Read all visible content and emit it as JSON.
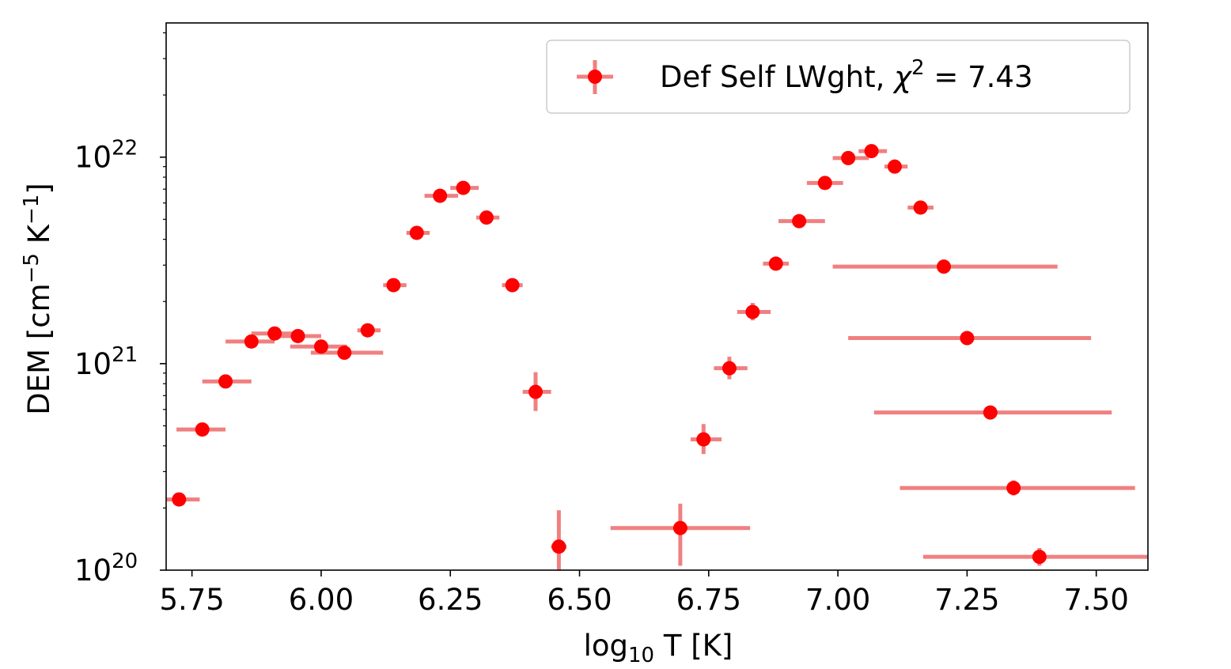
{
  "chart_data": {
    "type": "scatter",
    "title": "",
    "xlabel": {
      "base": "log",
      "sub": "10",
      "rest": " T [K]"
    },
    "ylabel": {
      "pre": "DEM [cm",
      "sup1": "−5",
      "mid": " K",
      "sup2": "−1",
      "post": "]"
    },
    "xscale": "linear",
    "yscale": "log",
    "xlim": [
      5.7,
      7.6
    ],
    "ylim_log10": [
      20,
      22.65
    ],
    "grid": false,
    "legend_position": "top-right",
    "x_ticks": [
      {
        "value": 5.75,
        "label": "5.75"
      },
      {
        "value": 6.0,
        "label": "6.00"
      },
      {
        "value": 6.25,
        "label": "6.25"
      },
      {
        "value": 6.5,
        "label": "6.50"
      },
      {
        "value": 6.75,
        "label": "6.75"
      },
      {
        "value": 7.0,
        "label": "7.00"
      },
      {
        "value": 7.25,
        "label": "7.25"
      },
      {
        "value": 7.5,
        "label": "7.50"
      }
    ],
    "y_ticks": [
      {
        "log10": 20,
        "base": "10",
        "exp": "20"
      },
      {
        "log10": 21,
        "base": "10",
        "exp": "21"
      },
      {
        "log10": 22,
        "base": "10",
        "exp": "22"
      }
    ],
    "series": [
      {
        "name": "Def Self LWght, ",
        "legend_chi_symbol": "χ",
        "legend_chi_exp": "2",
        "legend_chi_value": " =  7.43",
        "marker_color": "#ff0000",
        "errorbar_color": "#f08080",
        "points": [
          {
            "x": 5.725,
            "y": 2.2e+20,
            "xerr": [
              5.7,
              5.765
            ],
            "yerr": null
          },
          {
            "x": 5.77,
            "y": 4.8e+20,
            "xerr": [
              5.72,
              5.815
            ],
            "yerr": null
          },
          {
            "x": 5.815,
            "y": 8.2e+20,
            "xerr": [
              5.77,
              5.865
            ],
            "yerr": null
          },
          {
            "x": 5.865,
            "y": 1.28e+21,
            "xerr": [
              5.815,
              5.91
            ],
            "yerr": null
          },
          {
            "x": 5.91,
            "y": 1.4e+21,
            "xerr": [
              5.865,
              5.955
            ],
            "yerr": null
          },
          {
            "x": 5.955,
            "y": 1.36e+21,
            "xerr": [
              5.91,
              6.0
            ],
            "yerr": null
          },
          {
            "x": 6.0,
            "y": 1.21e+21,
            "xerr": [
              5.94,
              6.05
            ],
            "yerr": null
          },
          {
            "x": 6.045,
            "y": 1.13e+21,
            "xerr": [
              5.98,
              6.12
            ],
            "yerr": null
          },
          {
            "x": 6.09,
            "y": 1.45e+21,
            "xerr": [
              6.07,
              6.115
            ],
            "yerr": null
          },
          {
            "x": 6.14,
            "y": 2.4e+21,
            "xerr": [
              6.12,
              6.165
            ],
            "yerr": null
          },
          {
            "x": 6.185,
            "y": 4.3e+21,
            "xerr": [
              6.165,
              6.21
            ],
            "yerr": null
          },
          {
            "x": 6.23,
            "y": 6.5e+21,
            "xerr": [
              6.2,
              6.265
            ],
            "yerr": null
          },
          {
            "x": 6.275,
            "y": 7.1e+21,
            "xerr": [
              6.25,
              6.305
            ],
            "yerr": null
          },
          {
            "x": 6.32,
            "y": 5.1e+21,
            "xerr": [
              6.3,
              6.345
            ],
            "yerr": null
          },
          {
            "x": 6.37,
            "y": 2.4e+21,
            "xerr": [
              6.35,
              6.39
            ],
            "yerr": null
          },
          {
            "x": 6.415,
            "y": 7.3e+20,
            "xerr": [
              6.39,
              6.445
            ],
            "yerr": [
              5.9e+20,
              9.1e+20
            ]
          },
          {
            "x": 6.46,
            "y": 1.3e+20,
            "xerr": [
              6.445,
              6.475
            ],
            "yerr": [
              1e+20,
              1.95e+20
            ]
          },
          {
            "x": 6.695,
            "y": 1.6e+20,
            "xerr": [
              6.56,
              6.83
            ],
            "yerr": [
              1.05e+20,
              2.1e+20
            ]
          },
          {
            "x": 6.74,
            "y": 4.3e+20,
            "xerr": [
              6.715,
              6.775
            ],
            "yerr": [
              3.65e+20,
              5.1e+20
            ]
          },
          {
            "x": 6.79,
            "y": 9.5e+20,
            "xerr": [
              6.76,
              6.825
            ],
            "yerr": [
              8.4e+20,
              1.08e+21
            ]
          },
          {
            "x": 6.835,
            "y": 1.78e+21,
            "xerr": [
              6.805,
              6.87
            ],
            "yerr": [
              1.62e+21,
              1.97e+21
            ]
          },
          {
            "x": 6.88,
            "y": 3.05e+21,
            "xerr": [
              6.855,
              6.905
            ],
            "yerr": null
          },
          {
            "x": 6.925,
            "y": 4.9e+21,
            "xerr": [
              6.885,
              6.975
            ],
            "yerr": null
          },
          {
            "x": 6.975,
            "y": 7.5e+21,
            "xerr": [
              6.94,
              7.01
            ],
            "yerr": null
          },
          {
            "x": 7.02,
            "y": 9.9e+21,
            "xerr": [
              6.99,
              7.06
            ],
            "yerr": null
          },
          {
            "x": 7.065,
            "y": 1.07e+22,
            "xerr": [
              7.04,
              7.095
            ],
            "yerr": null
          },
          {
            "x": 7.11,
            "y": 9e+21,
            "xerr": [
              7.09,
              7.135
            ],
            "yerr": null
          },
          {
            "x": 7.16,
            "y": 5.7e+21,
            "xerr": [
              7.135,
              7.185
            ],
            "yerr": null
          },
          {
            "x": 7.205,
            "y": 2.95e+21,
            "xerr": [
              6.99,
              7.425
            ],
            "yerr": null
          },
          {
            "x": 7.25,
            "y": 1.33e+21,
            "xerr": [
              7.02,
              7.49
            ],
            "yerr": null
          },
          {
            "x": 7.295,
            "y": 5.8e+20,
            "xerr": [
              7.07,
              7.53
            ],
            "yerr": null
          },
          {
            "x": 7.34,
            "y": 2.5e+20,
            "xerr": [
              7.12,
              7.575
            ],
            "yerr": [
              2.3e+20,
              2.72e+20
            ]
          },
          {
            "x": 7.39,
            "y": 1.16e+20,
            "xerr": [
              7.165,
              7.6
            ],
            "yerr": [
              1.05e+20,
              1.28e+20
            ]
          }
        ]
      }
    ]
  }
}
